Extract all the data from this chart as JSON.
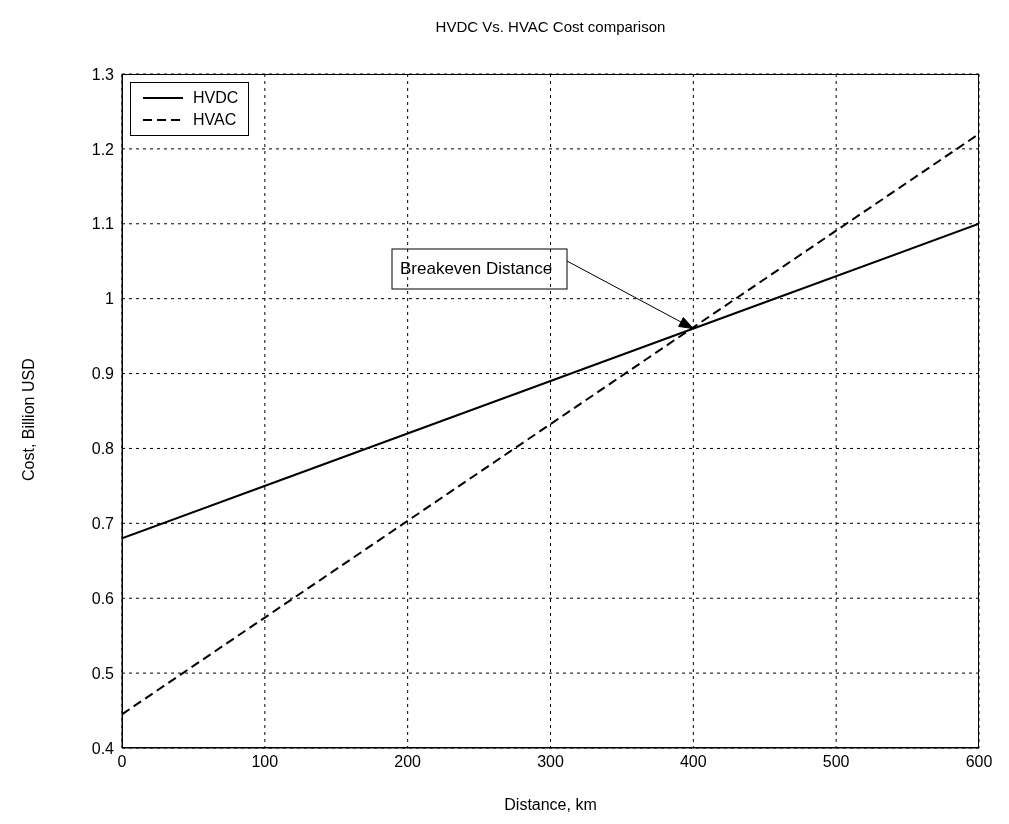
{
  "chart_data": {
    "type": "line",
    "title": "HVDC Vs. HVAC Cost comparison",
    "xlabel": "Distance, km",
    "ylabel": "Cost, Billion USD",
    "series": [
      {
        "name": "HVDC",
        "color": "#000000",
        "line_style": "solid",
        "values": [
          0.68,
          1.1
        ]
      },
      {
        "name": "HVAC",
        "color": "#000000",
        "line_style": "dashed",
        "values": [
          0.445,
          1.22
        ]
      }
    ],
    "x": [
      0,
      600
    ],
    "xlim": [
      0,
      600
    ],
    "xticks": [
      0,
      100,
      200,
      300,
      400,
      500,
      600
    ],
    "ylim": [
      0.4,
      1.3
    ],
    "yticks": [
      0.4,
      0.5,
      0.6,
      0.7,
      0.8,
      0.9,
      1,
      1.1,
      1.2,
      1.3
    ],
    "grid": true,
    "legend": "top left",
    "marker": "none",
    "annotations": [
      {
        "text": "Breakeven Distance",
        "x": 400,
        "y": 0.96
      }
    ]
  }
}
